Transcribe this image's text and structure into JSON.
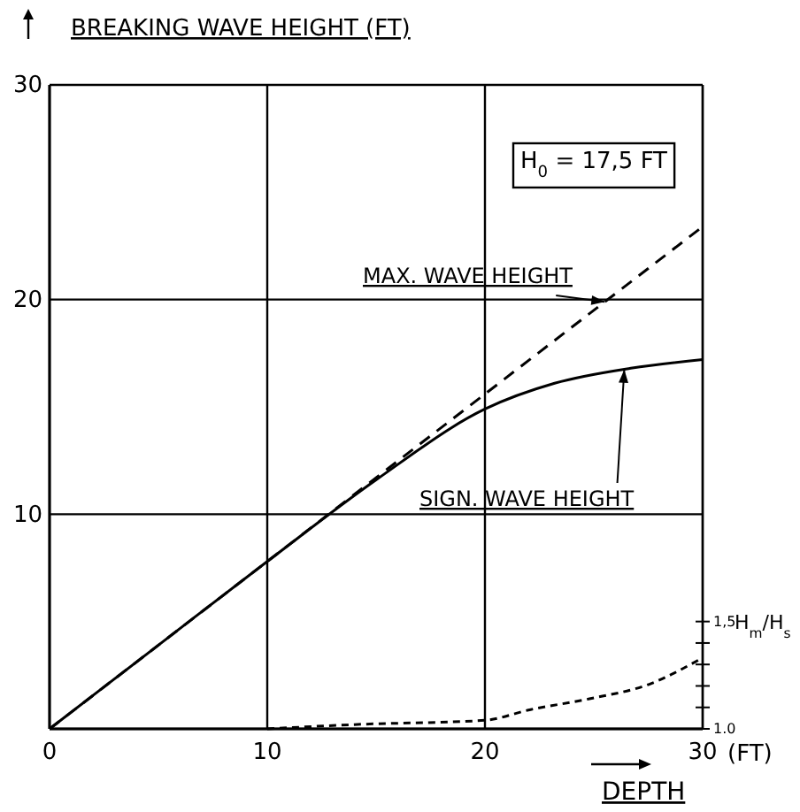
{
  "chart_data": {
    "type": "line",
    "ylabel": "BREAKING WAVE HEIGHT (FT)",
    "xlabel": "DEPTH",
    "y2label": "H$_{m}$/H$_{s}$",
    "xlim": [
      0,
      30
    ],
    "xticks": [
      0,
      10,
      20,
      30
    ],
    "ylim": [
      0,
      30
    ],
    "yticks": [
      {
        "value": 0,
        "label": null
      },
      10,
      20,
      30
    ],
    "y2lim": [
      1.0,
      4.0
    ],
    "y2ticks": [
      {
        "value": 1.0,
        "label": "1.0"
      },
      {
        "value": 1.1,
        "label": null
      },
      {
        "value": 1.2,
        "label": null
      },
      {
        "value": 1.3,
        "label": null
      },
      {
        "value": 1.4,
        "label": null
      },
      {
        "value": 1.5,
        "label": "1,5"
      }
    ],
    "grid": true,
    "annotations": [
      "H$_{0}$ = 17,5 FT",
      "(FT)"
    ],
    "series": [
      {
        "name": "MAX. WAVE HEIGHT",
        "color": "#000000",
        "line_style": "dashed",
        "x": [
          0,
          30
        ],
        "values": [
          0,
          23.4
        ]
      },
      {
        "name": "SIGN. WAVE HEIGHT",
        "color": "#000000",
        "line_style": "solid",
        "x": [
          0,
          5,
          10,
          15,
          20,
          23.2,
          26.7,
          30
        ],
        "values": [
          0,
          3.9,
          7.8,
          11.6,
          14.9,
          16.1,
          16.8,
          17.2
        ]
      },
      {
        "color": "#000000",
        "line_style": "dotted",
        "axis": "y2",
        "x": [
          10,
          14,
          20,
          22.1,
          24.8,
          27.6,
          29.8
        ],
        "values": [
          1.0,
          1.02,
          1.04,
          1.09,
          1.14,
          1.21,
          1.32
        ]
      }
    ]
  }
}
